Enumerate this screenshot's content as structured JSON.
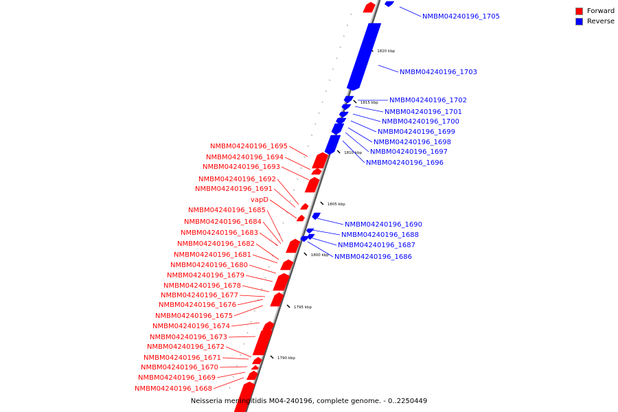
{
  "caption": "Neisseria meningitidis M04-240196, complete genome. - 0..2250449",
  "legend": [
    {
      "label": "Forward",
      "color": "#ff0000"
    },
    {
      "label": "Reverse",
      "color": "#0000ff"
    }
  ],
  "colors": {
    "forward": "#ff0000",
    "reverse": "#0000ff",
    "backbone": "#808080"
  },
  "ticks": [
    "1790 kbp",
    "1795 kbp",
    "1800 kbp",
    "1805 kbp",
    "1810 kbp",
    "1815 kbp",
    "1820 kbp"
  ],
  "reverse_genes": [
    "NMBM04240196_1705",
    "NMBM04240196_1703",
    "NMBM04240196_1702",
    "NMBM04240196_1701",
    "NMBM04240196_1700",
    "NMBM04240196_1699",
    "NMBM04240196_1698",
    "NMBM04240196_1697",
    "NMBM04240196_1696",
    "NMBM04240196_1690",
    "NMBM04240196_1688",
    "NMBM04240196_1687",
    "NMBM04240196_1686"
  ],
  "forward_genes": [
    "NMBM04240196_1695",
    "NMBM04240196_1694",
    "NMBM04240196_1693",
    "NMBM04240196_1692",
    "NMBM04240196_1691",
    "vapD",
    "NMBM04240196_1685",
    "NMBM04240196_1684",
    "NMBM04240196_1683",
    "NMBM04240196_1682",
    "NMBM04240196_1681",
    "NMBM04240196_1680",
    "NMBM04240196_1679",
    "NMBM04240196_1678",
    "NMBM04240196_1677",
    "NMBM04240196_1676",
    "NMBM04240196_1675",
    "NMBM04240196_1674",
    "NMBM04240196_1673",
    "NMBM04240196_1672",
    "NMBM04240196_1671",
    "NMBM04240196_1670",
    "NMBM04240196_1669",
    "NMBM04240196_1668"
  ]
}
